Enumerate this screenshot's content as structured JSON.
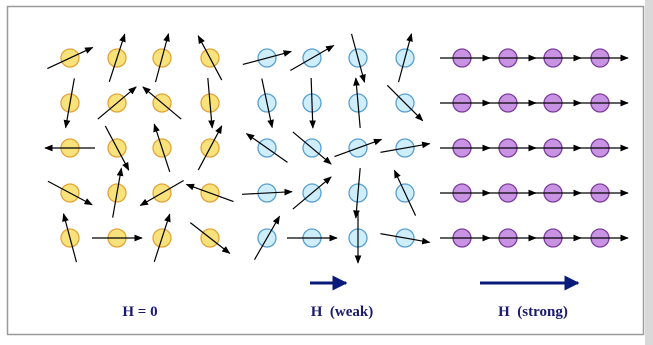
{
  "labels": {
    "zero": "H = 0",
    "weak": "H  (weak)",
    "strong": "H  (strong)"
  }
}
